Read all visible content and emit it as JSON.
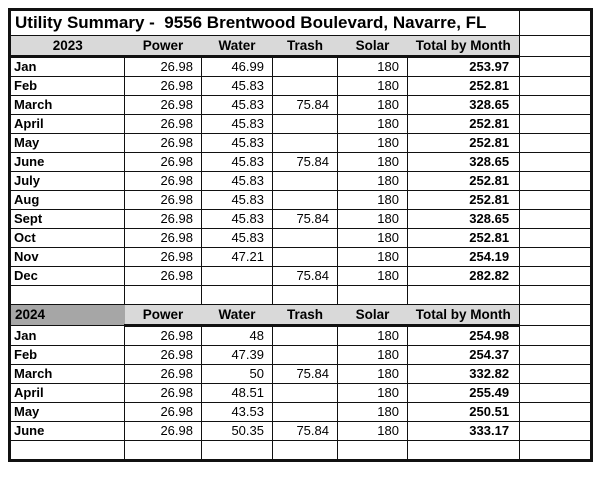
{
  "title": "Utility Summary -  9556 Brentwood Boulevard, Navarre, FL",
  "columns": [
    "Power",
    "Water",
    "Trash",
    "Solar",
    "Total by Month"
  ],
  "colors": {
    "header_bg": "#d9d9d9",
    "year_2024_bg": "#a6a6a6",
    "border": "#111111"
  },
  "sections": [
    {
      "year": "2023",
      "rows": [
        {
          "month": "Jan",
          "power": "26.98",
          "water": "46.99",
          "trash": "",
          "solar": "180",
          "total": "253.97"
        },
        {
          "month": "Feb",
          "power": "26.98",
          "water": "45.83",
          "trash": "",
          "solar": "180",
          "total": "252.81"
        },
        {
          "month": "March",
          "power": "26.98",
          "water": "45.83",
          "trash": "75.84",
          "solar": "180",
          "total": "328.65"
        },
        {
          "month": "April",
          "power": "26.98",
          "water": "45.83",
          "trash": "",
          "solar": "180",
          "total": "252.81"
        },
        {
          "month": "May",
          "power": "26.98",
          "water": "45.83",
          "trash": "",
          "solar": "180",
          "total": "252.81"
        },
        {
          "month": "June",
          "power": "26.98",
          "water": "45.83",
          "trash": "75.84",
          "solar": "180",
          "total": "328.65"
        },
        {
          "month": "July",
          "power": "26.98",
          "water": "45.83",
          "trash": "",
          "solar": "180",
          "total": "252.81"
        },
        {
          "month": "Aug",
          "power": "26.98",
          "water": "45.83",
          "trash": "",
          "solar": "180",
          "total": "252.81"
        },
        {
          "month": "Sept",
          "power": "26.98",
          "water": "45.83",
          "trash": "75.84",
          "solar": "180",
          "total": "328.65"
        },
        {
          "month": "Oct",
          "power": "26.98",
          "water": "45.83",
          "trash": "",
          "solar": "180",
          "total": "252.81"
        },
        {
          "month": "Nov",
          "power": "26.98",
          "water": "47.21",
          "trash": "",
          "solar": "180",
          "total": "254.19"
        },
        {
          "month": "Dec",
          "power": "26.98",
          "water": "",
          "trash": "75.84",
          "solar": "180",
          "total": "282.82"
        }
      ]
    },
    {
      "year": "2024",
      "rows": [
        {
          "month": "Jan",
          "power": "26.98",
          "water": "48",
          "trash": "",
          "solar": "180",
          "total": "254.98"
        },
        {
          "month": "Feb",
          "power": "26.98",
          "water": "47.39",
          "trash": "",
          "solar": "180",
          "total": "254.37"
        },
        {
          "month": "March",
          "power": "26.98",
          "water": "50",
          "trash": "75.84",
          "solar": "180",
          "total": "332.82"
        },
        {
          "month": "April",
          "power": "26.98",
          "water": "48.51",
          "trash": "",
          "solar": "180",
          "total": "255.49"
        },
        {
          "month": "May",
          "power": "26.98",
          "water": "43.53",
          "trash": "",
          "solar": "180",
          "total": "250.51"
        },
        {
          "month": "June",
          "power": "26.98",
          "water": "50.35",
          "trash": "75.84",
          "solar": "180",
          "total": "333.17"
        }
      ]
    }
  ]
}
